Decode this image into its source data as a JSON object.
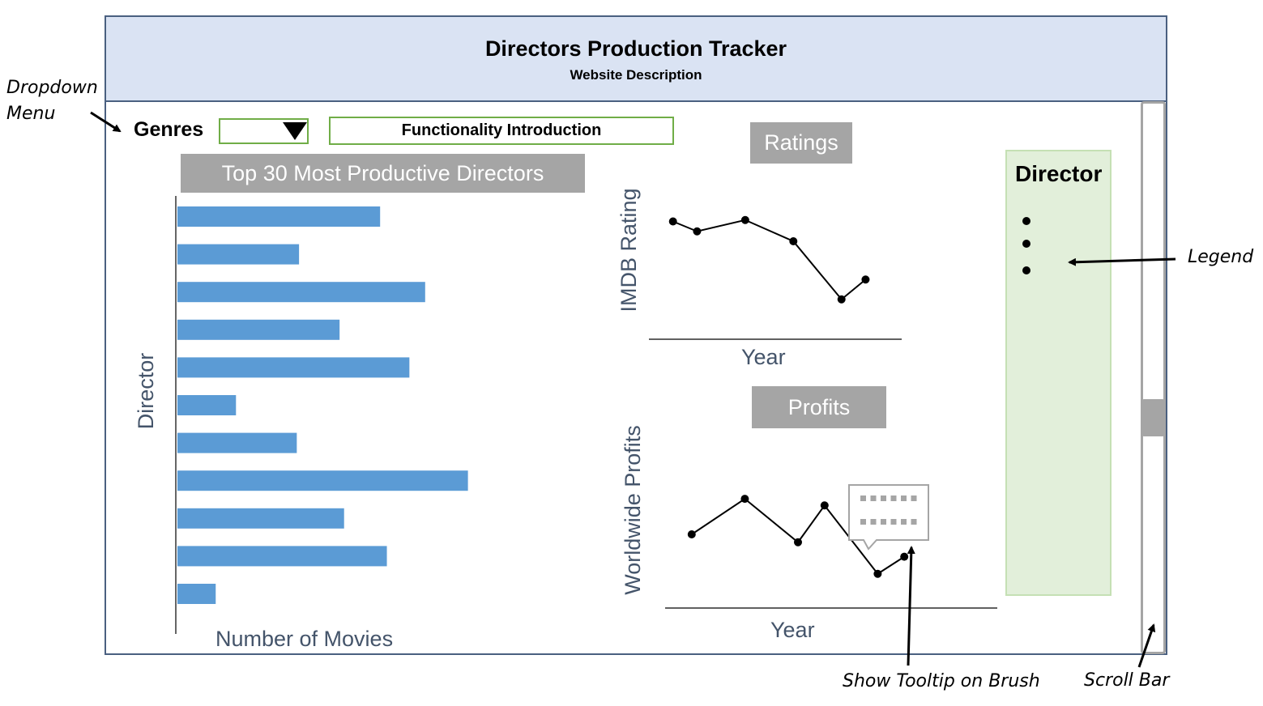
{
  "header": {
    "title": "Directors Production Tracker",
    "subtitle": "Website Description"
  },
  "annotations": {
    "dropdown_line1": "Dropdown",
    "dropdown_line2": "Menu",
    "legend": "Legend",
    "tooltip": "Show Tooltip on Brush",
    "scrollbar": "Scroll Bar"
  },
  "controls": {
    "genres_label": "Genres",
    "dropdown_value": "",
    "functionality_label": "Functionality Introduction"
  },
  "bar_panel": {
    "title": "Top 30  Most Productive Directors",
    "ylabel": "Director",
    "xlabel": "Number of Movies"
  },
  "ratings_panel": {
    "title": "Ratings",
    "ylabel": "IMDB Rating",
    "xlabel": "Year"
  },
  "profits_panel": {
    "title": "Profits",
    "ylabel": "Worldwide Profits",
    "xlabel": "Year"
  },
  "legend": {
    "title": "Director",
    "items": 3
  },
  "colors": {
    "header_bg": "#dae3f3",
    "bar": "#5b9bd5",
    "title_bg": "#a5a5a5",
    "legend_bg": "#e2efda",
    "outline_green": "#70ad47",
    "axis_text": "#44546a"
  },
  "chart_data": [
    {
      "type": "bar",
      "orientation": "horizontal",
      "title": "Top 30  Most Productive Directors",
      "xlabel": "Number of Movies",
      "ylabel": "Director",
      "values": [
        9,
        5.4,
        11,
        7.2,
        10.3,
        2.6,
        5.3,
        12.9,
        7.4,
        9.3,
        1.7
      ],
      "xlim": [
        0,
        14
      ]
    },
    {
      "type": "line",
      "title": "Ratings",
      "xlabel": "Year",
      "ylabel": "IMDB Rating",
      "x": [
        1,
        2,
        4,
        6,
        8,
        9
      ],
      "y": [
        6.6,
        5.9,
        6.7,
        5.2,
        1.1,
        2.5
      ],
      "xlim": [
        0,
        10.5
      ],
      "ylim": [
        0,
        8
      ]
    },
    {
      "type": "line",
      "title": "Profits",
      "xlabel": "Year",
      "ylabel": "Worldwide Profits",
      "x": [
        1,
        3,
        5,
        6,
        8,
        9
      ],
      "y": [
        5.6,
        8.3,
        5.0,
        7.8,
        2.6,
        3.9
      ],
      "xlim": [
        0,
        12.5
      ],
      "ylim": [
        0,
        12
      ]
    }
  ]
}
